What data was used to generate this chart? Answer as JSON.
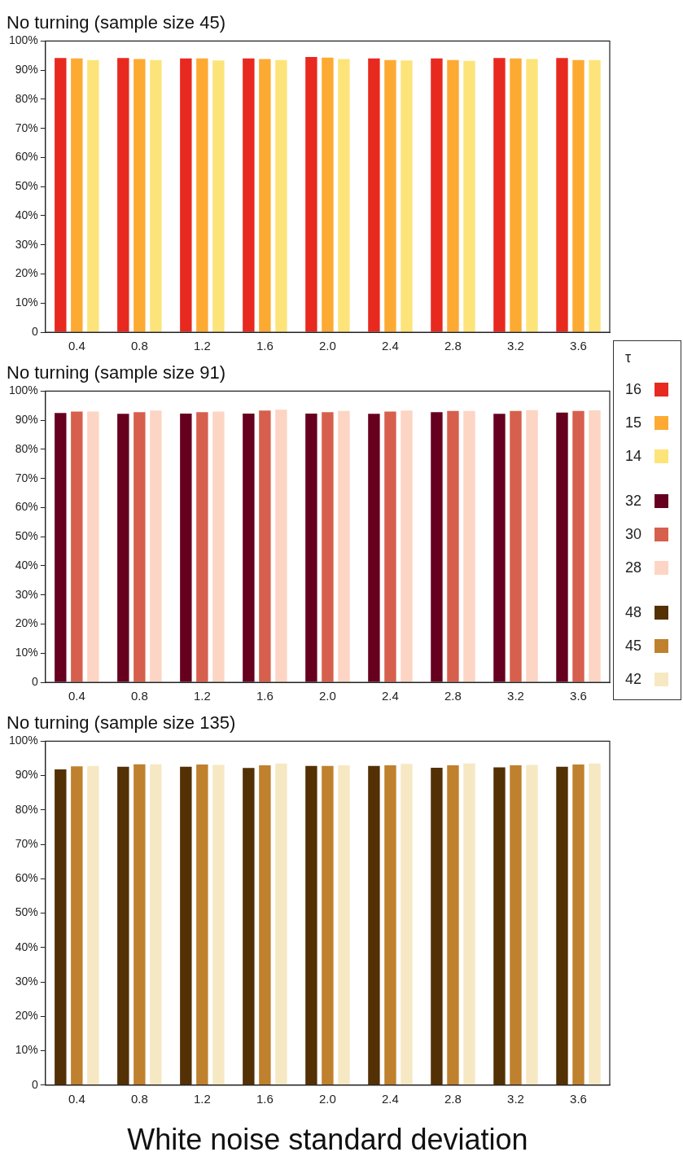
{
  "chart_data": [
    {
      "type": "bar",
      "title": "No turning (sample size 45)",
      "categories": [
        "0.4",
        "0.8",
        "1.2",
        "1.6",
        "2.0",
        "2.4",
        "2.8",
        "3.2",
        "3.6"
      ],
      "ylim": [
        0,
        100
      ],
      "yticks": [
        {
          "value": 0,
          "label": "0"
        },
        {
          "value": 10,
          "label": "10%"
        },
        {
          "value": 20,
          "label": "20%"
        },
        {
          "value": 30,
          "label": "30%"
        },
        {
          "value": 40,
          "label": "40%"
        },
        {
          "value": 50,
          "label": "50%"
        },
        {
          "value": 60,
          "label": "60%"
        },
        {
          "value": 70,
          "label": "70%"
        },
        {
          "value": 80,
          "label": "80%"
        },
        {
          "value": 90,
          "label": "90%"
        },
        {
          "value": 100,
          "label": "100%"
        }
      ],
      "grid": false,
      "legend": "right",
      "legend_title": "τ",
      "series": [
        {
          "name": "16",
          "color": "#e8291f",
          "values": [
            94.2,
            94.2,
            94,
            94,
            94.5,
            94,
            94,
            94.2,
            94.2
          ]
        },
        {
          "name": "15",
          "color": "#fdaa33",
          "values": [
            94,
            93.8,
            94,
            93.8,
            94.3,
            93.5,
            93.5,
            94,
            93.5
          ]
        },
        {
          "name": "14",
          "color": "#fde47a",
          "values": [
            93.5,
            93.5,
            93.3,
            93.5,
            93.8,
            93.3,
            93.2,
            93.8,
            93.5
          ]
        }
      ]
    },
    {
      "type": "bar",
      "title": "No turning (sample size 91)",
      "categories": [
        "0.4",
        "0.8",
        "1.2",
        "1.6",
        "2.0",
        "2.4",
        "2.8",
        "3.2",
        "3.6"
      ],
      "ylim": [
        0,
        100
      ],
      "yticks": [
        {
          "value": 0,
          "label": "0"
        },
        {
          "value": 10,
          "label": "10%"
        },
        {
          "value": 20,
          "label": "20%"
        },
        {
          "value": 30,
          "label": "30%"
        },
        {
          "value": 40,
          "label": "40%"
        },
        {
          "value": 50,
          "label": "50%"
        },
        {
          "value": 60,
          "label": "60%"
        },
        {
          "value": 70,
          "label": "70%"
        },
        {
          "value": 80,
          "label": "80%"
        },
        {
          "value": 90,
          "label": "90%"
        },
        {
          "value": 100,
          "label": "100%"
        }
      ],
      "grid": false,
      "legend": "right",
      "series": [
        {
          "name": "32",
          "color": "#67001f",
          "values": [
            92.5,
            92.2,
            92.3,
            92.3,
            92.3,
            92.2,
            92.8,
            92.2,
            92.6
          ]
        },
        {
          "name": "30",
          "color": "#d6604d",
          "values": [
            93,
            92.8,
            92.8,
            93.3,
            92.8,
            93,
            93.2,
            93.2,
            93.2
          ]
        },
        {
          "name": "28",
          "color": "#fdd5c4",
          "values": [
            93,
            93.3,
            93,
            93.6,
            93.2,
            93.3,
            93.2,
            93.5,
            93.4
          ]
        }
      ]
    },
    {
      "type": "bar",
      "title": "No turning (sample size 135)",
      "xlabel": "White noise standard deviation",
      "categories": [
        "0.4",
        "0.8",
        "1.2",
        "1.6",
        "2.0",
        "2.4",
        "2.8",
        "3.2",
        "3.6"
      ],
      "ylim": [
        0,
        100
      ],
      "yticks": [
        {
          "value": 0,
          "label": "0"
        },
        {
          "value": 10,
          "label": "10%"
        },
        {
          "value": 20,
          "label": "20%"
        },
        {
          "value": 30,
          "label": "30%"
        },
        {
          "value": 40,
          "label": "40%"
        },
        {
          "value": 50,
          "label": "50%"
        },
        {
          "value": 60,
          "label": "60%"
        },
        {
          "value": 70,
          "label": "70%"
        },
        {
          "value": 80,
          "label": "80%"
        },
        {
          "value": 90,
          "label": "90%"
        },
        {
          "value": 100,
          "label": "100%"
        }
      ],
      "grid": false,
      "legend": "right",
      "series": [
        {
          "name": "48",
          "color": "#543005",
          "values": [
            91.8,
            92.6,
            92.6,
            92.2,
            92.8,
            92.8,
            92.3,
            92.4,
            92.6
          ]
        },
        {
          "name": "45",
          "color": "#bf812d",
          "values": [
            92.7,
            93.3,
            93.2,
            93,
            92.8,
            93,
            93,
            93,
            93.2
          ]
        },
        {
          "name": "42",
          "color": "#f6e8c3",
          "values": [
            92.8,
            93.3,
            93.1,
            93.5,
            93,
            93.4,
            93.5,
            93.1,
            93.5
          ]
        }
      ]
    }
  ]
}
